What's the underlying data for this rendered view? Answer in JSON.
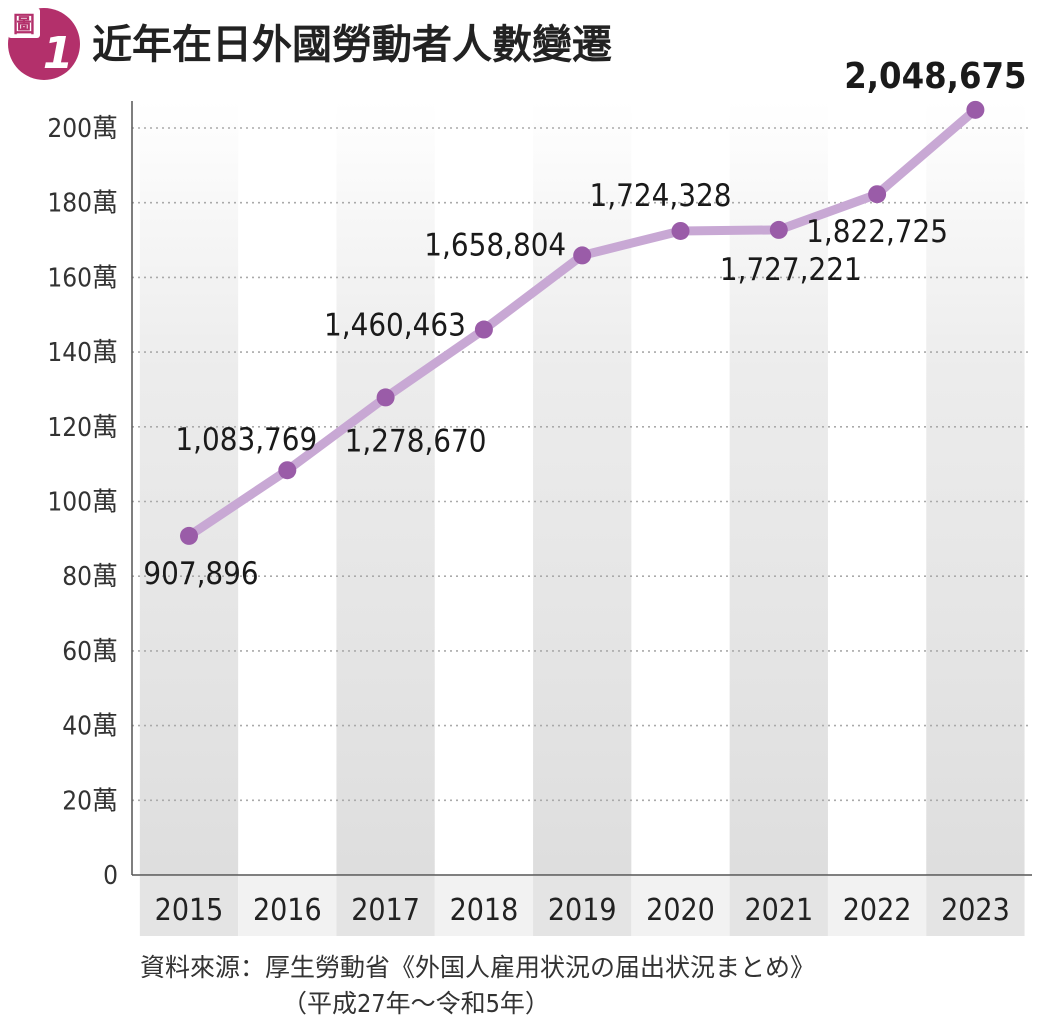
{
  "colors": {
    "badge": "#b3306b",
    "line": "#c8a8d4",
    "marker": "#9a5ca8",
    "axis": "#555555",
    "grid": "#aaaaaa",
    "band": "#e3e3e3",
    "text": "#222222"
  },
  "header": {
    "badge_label": "圖",
    "badge_number": "1"
  },
  "chart_data": {
    "type": "line",
    "title": "近年在日外國勞動者人數變遷",
    "categories": [
      "2015",
      "2016",
      "2017",
      "2018",
      "2019",
      "2020",
      "2021",
      "2022",
      "2023"
    ],
    "series": [
      {
        "values": [
          907896,
          1083769,
          1278670,
          1460463,
          1658804,
          1724328,
          1727221,
          1822725,
          2048675
        ],
        "labels": [
          "907,896",
          "1,083,769",
          "1,278,670",
          "1,460,463",
          "1,658,804",
          "1,724,328",
          "1,727,221",
          "1,822,725",
          "2,048,675"
        ]
      }
    ],
    "yticks": [
      0,
      200000,
      400000,
      600000,
      800000,
      1000000,
      1200000,
      1400000,
      1600000,
      1800000,
      2000000
    ],
    "ytick_labels": [
      "0",
      "20萬",
      "40萬",
      "60萬",
      "80萬",
      "100萬",
      "120萬",
      "140萬",
      "160萬",
      "180萬",
      "200萬"
    ],
    "ylim": [
      0,
      2000000
    ],
    "grid": true
  },
  "source": {
    "line1": "資料來源：厚生勞動省《外国人雇用状況の届出状況まとめ》",
    "line2": "（平成27年～令和5年）"
  }
}
